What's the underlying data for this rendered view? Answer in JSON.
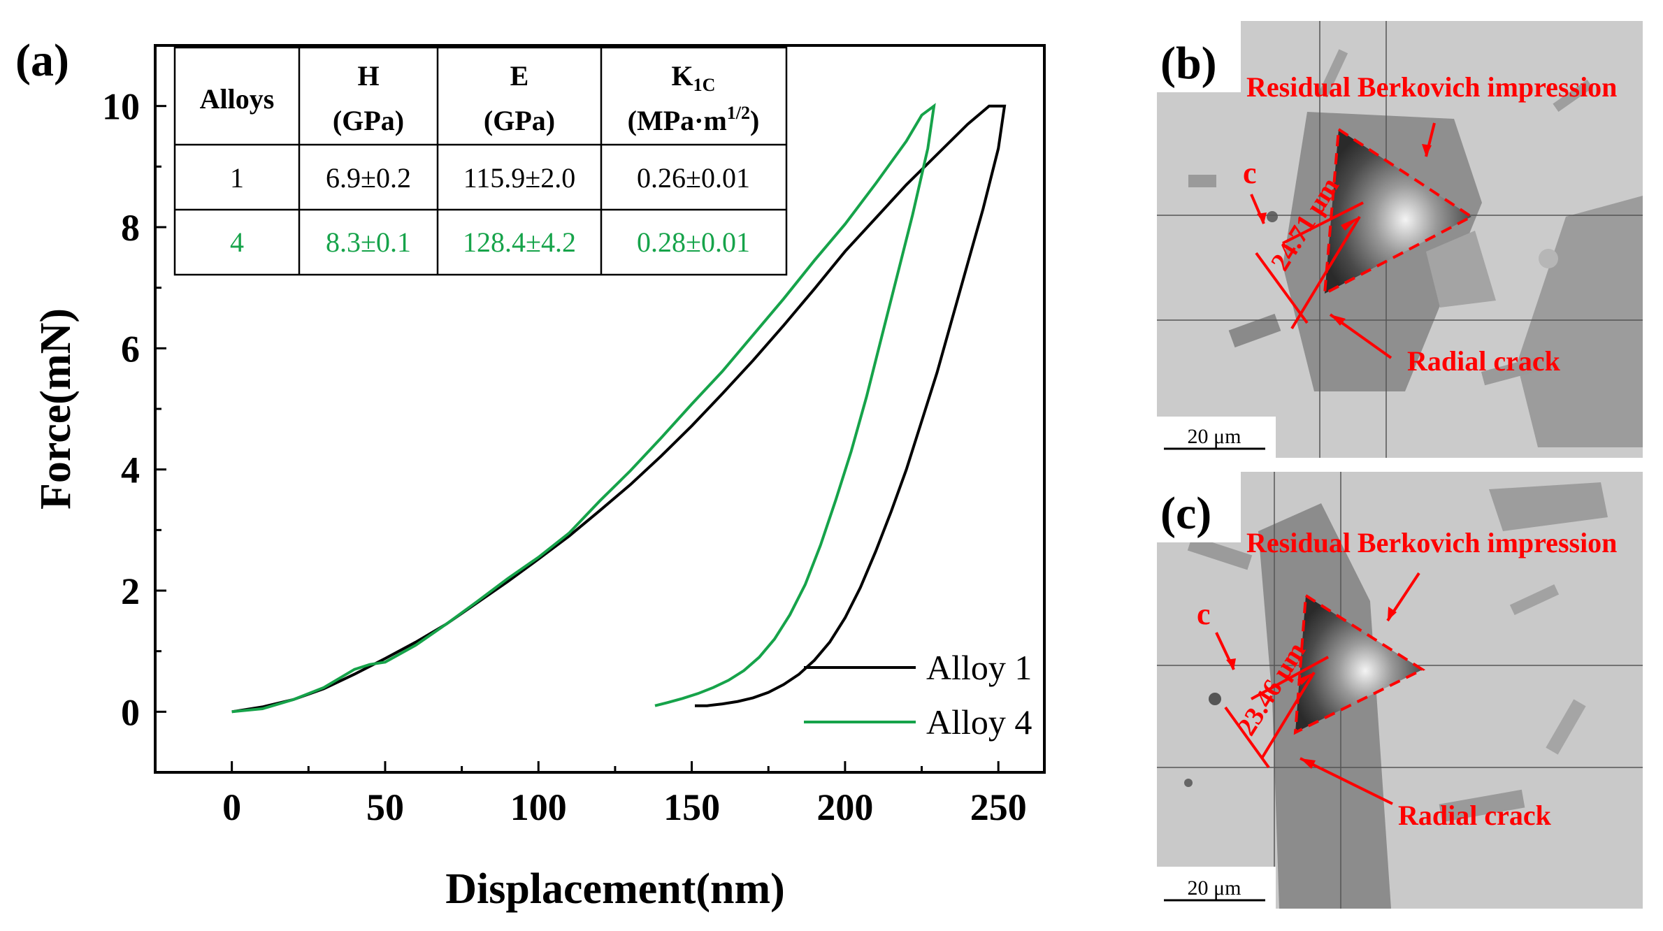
{
  "colors": {
    "alloy1": "#000000",
    "alloy4": "#16a34a",
    "annotation": "#ff0000"
  },
  "panels": {
    "a": "(a)",
    "b": "(b)",
    "c": "(c)"
  },
  "chart_data": {
    "type": "line",
    "xlabel": "Displacement(nm)",
    "ylabel": "Force(mN)",
    "xlim": [
      -25,
      265
    ],
    "ylim": [
      -1,
      11
    ],
    "xticks": [
      0,
      50,
      100,
      150,
      200,
      250
    ],
    "yticks": [
      0,
      2,
      4,
      6,
      8,
      10
    ],
    "legend_position": "bottom-right",
    "series": [
      {
        "name": "Alloy 1",
        "color": "#000000",
        "x": [
          0,
          10,
          20,
          30,
          40,
          50,
          60,
          70,
          80,
          90,
          100,
          110,
          120,
          130,
          140,
          150,
          160,
          170,
          180,
          190,
          200,
          210,
          220,
          230,
          240,
          247,
          252,
          250,
          245,
          240,
          235,
          230,
          225,
          220,
          215,
          210,
          205,
          200,
          195,
          190,
          185,
          180,
          175,
          170,
          165,
          160,
          155,
          151
        ],
        "y": [
          0,
          0.08,
          0.2,
          0.38,
          0.62,
          0.88,
          1.15,
          1.45,
          1.8,
          2.15,
          2.52,
          2.9,
          3.32,
          3.75,
          4.22,
          4.72,
          5.25,
          5.8,
          6.38,
          6.98,
          7.6,
          8.15,
          8.7,
          9.2,
          9.7,
          10,
          10,
          9.3,
          8.3,
          7.4,
          6.5,
          5.6,
          4.8,
          4.0,
          3.3,
          2.65,
          2.05,
          1.55,
          1.15,
          0.85,
          0.62,
          0.45,
          0.32,
          0.23,
          0.17,
          0.13,
          0.1,
          0.1
        ]
      },
      {
        "name": "Alloy 4",
        "color": "#16a34a",
        "x": [
          0,
          10,
          20,
          30,
          40,
          45,
          50,
          60,
          70,
          80,
          90,
          100,
          110,
          120,
          130,
          140,
          150,
          160,
          170,
          180,
          190,
          200,
          210,
          220,
          225,
          229,
          227,
          222,
          217,
          212,
          207,
          202,
          197,
          192,
          187,
          182,
          177,
          172,
          167,
          162,
          157,
          152,
          147,
          142,
          138
        ],
        "y": [
          0,
          0.05,
          0.2,
          0.4,
          0.7,
          0.78,
          0.82,
          1.1,
          1.45,
          1.82,
          2.2,
          2.55,
          2.95,
          3.48,
          3.98,
          4.52,
          5.08,
          5.62,
          6.22,
          6.82,
          7.45,
          8.05,
          8.72,
          9.42,
          9.85,
          10,
          9.3,
          8.2,
          7.2,
          6.2,
          5.2,
          4.3,
          3.5,
          2.75,
          2.1,
          1.6,
          1.2,
          0.9,
          0.68,
          0.52,
          0.4,
          0.3,
          0.22,
          0.15,
          0.1
        ]
      }
    ],
    "table": {
      "headers": [
        {
          "main": "Alloys",
          "sub": ""
        },
        {
          "main": "H",
          "sub": "(GPa)"
        },
        {
          "main": "E",
          "sub": "(GPa)"
        },
        {
          "main": "K",
          "subscript": "1C",
          "sub_prefix": "(MPa·m",
          "superscript": "1/2",
          "sub_suffix": ")"
        }
      ],
      "rows": [
        {
          "alloy": "1",
          "H": "6.9±0.2",
          "E": "115.9±2.0",
          "K1C": "0.26±0.01",
          "color": "#000000"
        },
        {
          "alloy": "4",
          "H": "8.3±0.1",
          "E": "128.4±4.2",
          "K1C": "0.28±0.01",
          "color": "#16a34a"
        }
      ]
    }
  },
  "micrographs": {
    "b": {
      "label_residual": "Residual Berkovich impression",
      "label_crack": "Radial  crack",
      "label_c": "c",
      "measurement": "24.71 μm",
      "scale_bar": "20 μm"
    },
    "c": {
      "label_residual": "Residual Berkovich impression",
      "label_crack": "Radial  crack",
      "label_c": "c",
      "measurement": "23.46 μm",
      "scale_bar": "20 μm"
    }
  }
}
